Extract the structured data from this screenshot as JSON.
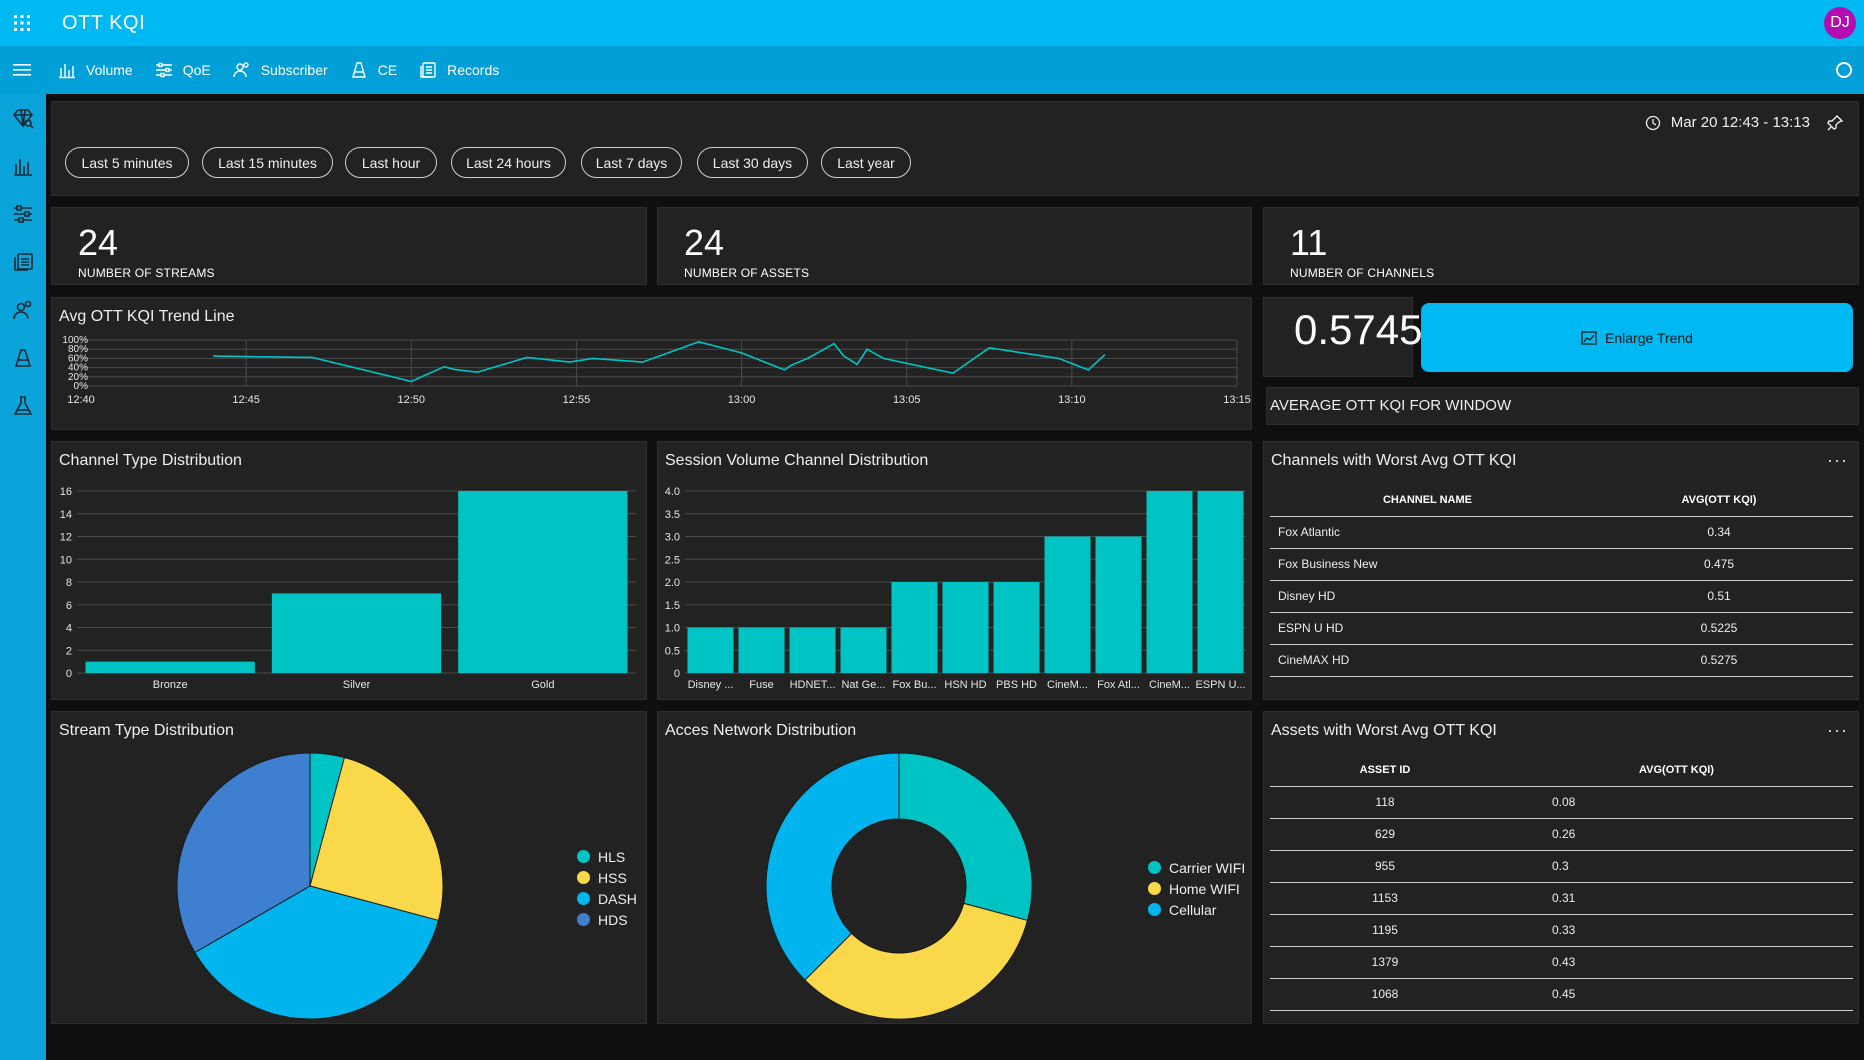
{
  "header": {
    "title": "OTT KQI",
    "avatar_initials": "DJ"
  },
  "nav": {
    "items": [
      {
        "label": "Volume",
        "icon": "bar-chart-icon"
      },
      {
        "label": "QoE",
        "icon": "sliders-icon"
      },
      {
        "label": "Subscriber",
        "icon": "people-icon"
      },
      {
        "label": "CE",
        "icon": "ce-icon"
      },
      {
        "label": "Records",
        "icon": "records-icon"
      }
    ]
  },
  "time_filter": {
    "range": "Mar 20 12:43 - 13:13",
    "chips": [
      "Last 5 minutes",
      "Last 15 minutes",
      "Last hour",
      "Last 24 hours",
      "Last 7 days",
      "Last 30 days",
      "Last year"
    ]
  },
  "stats": {
    "streams": {
      "value": "24",
      "label": "NUMBER OF STREAMS"
    },
    "assets": {
      "value": "24",
      "label": "NUMBER OF ASSETS"
    },
    "channels": {
      "value": "11",
      "label": "NUMBER OF CHANNELS"
    }
  },
  "kqi": {
    "value": "0.5745",
    "label": "AVERAGE OTT KQI FOR WINDOW",
    "enlarge_label": "Enlarge Trend"
  },
  "trend": {
    "title": "Avg OTT KQI Trend Line"
  },
  "channel_type": {
    "title": "Channel Type Distribution"
  },
  "session_volume": {
    "title": "Session Volume Channel Distribution"
  },
  "stream_type": {
    "title": "Stream Type Distribution"
  },
  "access_network": {
    "title": "Acces Network Distribution"
  },
  "worst_channels": {
    "title": "Channels with Worst Avg OTT KQI",
    "columns": [
      "CHANNEL NAME",
      "AVG(OTT KQI)"
    ],
    "rows": [
      [
        "Fox Atlantic",
        "0.34"
      ],
      [
        "Fox Business New",
        "0.475"
      ],
      [
        "Disney HD",
        "0.51"
      ],
      [
        "ESPN U HD",
        "0.5225"
      ],
      [
        "CineMAX HD",
        "0.5275"
      ]
    ]
  },
  "worst_assets": {
    "title": "Assets with Worst Avg OTT KQI",
    "columns": [
      "ASSET ID",
      "AVG(OTT KQI)"
    ],
    "rows": [
      [
        "118",
        "0.08"
      ],
      [
        "629",
        "0.26"
      ],
      [
        "955",
        "0.3"
      ],
      [
        "1153",
        "0.31"
      ],
      [
        "1195",
        "0.33"
      ],
      [
        "1379",
        "0.43"
      ],
      [
        "1068",
        "0.45"
      ]
    ]
  },
  "colors": {
    "teal": "#00c4c4",
    "yellow": "#f9d84a",
    "blue": "#00b4ee",
    "darkblue": "#3f7fd0",
    "accent": "#00b9f2"
  },
  "chart_data": [
    {
      "type": "line",
      "title": "Avg OTT KQI Trend Line",
      "x_ticks": [
        "12:40",
        "12:45",
        "12:50",
        "12:55",
        "13:00",
        "13:05",
        "13:10",
        "13:15"
      ],
      "y_ticks": [
        "100%",
        "80%",
        "60%",
        "40%",
        "20%",
        "0%"
      ],
      "ylim": [
        0,
        100
      ],
      "x_minutes": [
        44,
        47,
        50,
        51,
        51.3,
        52,
        53.5,
        54.8,
        55.5,
        57,
        58.7,
        60,
        61.3,
        61.5,
        62,
        62.8,
        63.1,
        63.5,
        63.8,
        64.3,
        66.4,
        67.5,
        69.6,
        70.5,
        71
      ],
      "y": [
        65,
        62,
        10,
        42,
        36,
        30,
        62,
        52,
        60,
        52,
        96,
        72,
        35,
        45,
        60,
        92,
        65,
        47,
        80,
        60,
        28,
        83,
        60,
        35,
        68
      ]
    },
    {
      "type": "bar",
      "title": "Channel Type Distribution",
      "categories": [
        "Bronze",
        "Silver",
        "Gold"
      ],
      "values": [
        1,
        7,
        16
      ],
      "y_ticks": [
        "0",
        "2",
        "4",
        "6",
        "8",
        "10",
        "12",
        "14",
        "16"
      ],
      "ylim": [
        0,
        16
      ]
    },
    {
      "type": "bar",
      "title": "Session Volume Channel Distribution",
      "categories": [
        "Disney ...",
        "Fuse",
        "HDNET...",
        "Nat Ge...",
        "Fox Bu...",
        "HSN HD",
        "PBS HD",
        "CineM...",
        "Fox Atl...",
        "CineM...",
        "ESPN U..."
      ],
      "values": [
        1,
        1,
        1,
        1,
        2,
        2,
        2,
        3,
        3,
        4,
        4
      ],
      "y_ticks": [
        "0",
        "0.5",
        "1.0",
        "1.5",
        "2.0",
        "2.5",
        "3.0",
        "3.5",
        "4.0"
      ],
      "ylim": [
        0,
        4
      ]
    },
    {
      "type": "pie",
      "title": "Stream Type Distribution",
      "labels": [
        "HLS",
        "HSS",
        "DASH",
        "HDS"
      ],
      "values": [
        1,
        6,
        9,
        8
      ]
    },
    {
      "type": "pie",
      "title": "Acces Network Distribution",
      "labels": [
        "Carrier WIFI",
        "Home WIFI",
        "Cellular"
      ],
      "values": [
        7,
        8,
        9
      ]
    }
  ]
}
